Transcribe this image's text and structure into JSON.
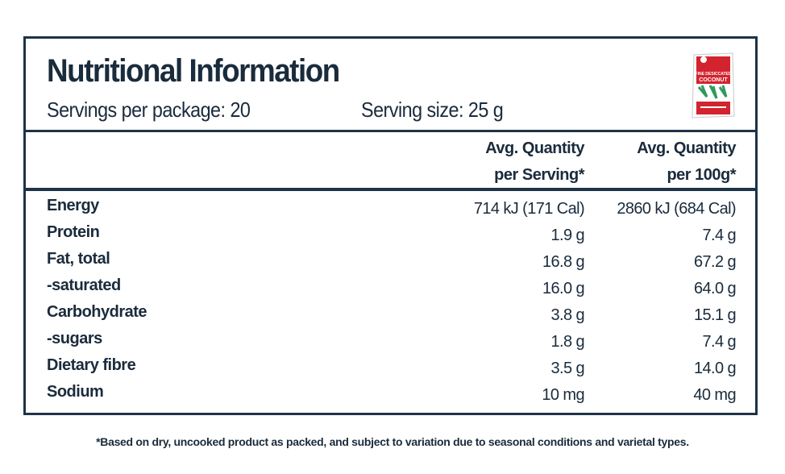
{
  "label": {
    "title": "Nutritional Information",
    "servings_per_package": "Servings per package: 20",
    "serving_size": "Serving size: 25 g",
    "column_headers": {
      "per_serving": [
        "Avg. Quantity",
        "per Serving*"
      ],
      "per_100g": [
        "Avg. Quantity",
        "per 100g*"
      ]
    },
    "rows": [
      {
        "name": "Energy",
        "per_serving": "714 kJ (171 Cal)",
        "per_100g": "2860 kJ (684 Cal)"
      },
      {
        "name": "Protein",
        "per_serving": "1.9 g",
        "per_100g": "7.4 g"
      },
      {
        "name": "Fat, total",
        "per_serving": "16.8 g",
        "per_100g": "67.2 g"
      },
      {
        "name": "-saturated",
        "per_serving": "16.0 g",
        "per_100g": "64.0 g"
      },
      {
        "name": "Carbohydrate",
        "per_serving": "3.8 g",
        "per_100g": "15.1 g"
      },
      {
        "name": "-sugars",
        "per_serving": "1.8 g",
        "per_100g": "7.4 g"
      },
      {
        "name": "Dietary fibre",
        "per_serving": "3.5 g",
        "per_100g": "14.0 g"
      },
      {
        "name": "Sodium",
        "per_serving": "10 mg",
        "per_100g": "40 mg"
      }
    ],
    "footnote": "*Based on dry, uncooked product as packed, and subject to variation due to seasonal conditions and varietal types."
  },
  "product_image": {
    "icon": "coconut-package-icon",
    "text_line1": "FINE DESICCATED",
    "text_line2": "COCONUT",
    "colors": {
      "red": "#d3232f",
      "green": "#2f9a5a",
      "white": "#ffffff",
      "border": "#1d3347"
    }
  }
}
